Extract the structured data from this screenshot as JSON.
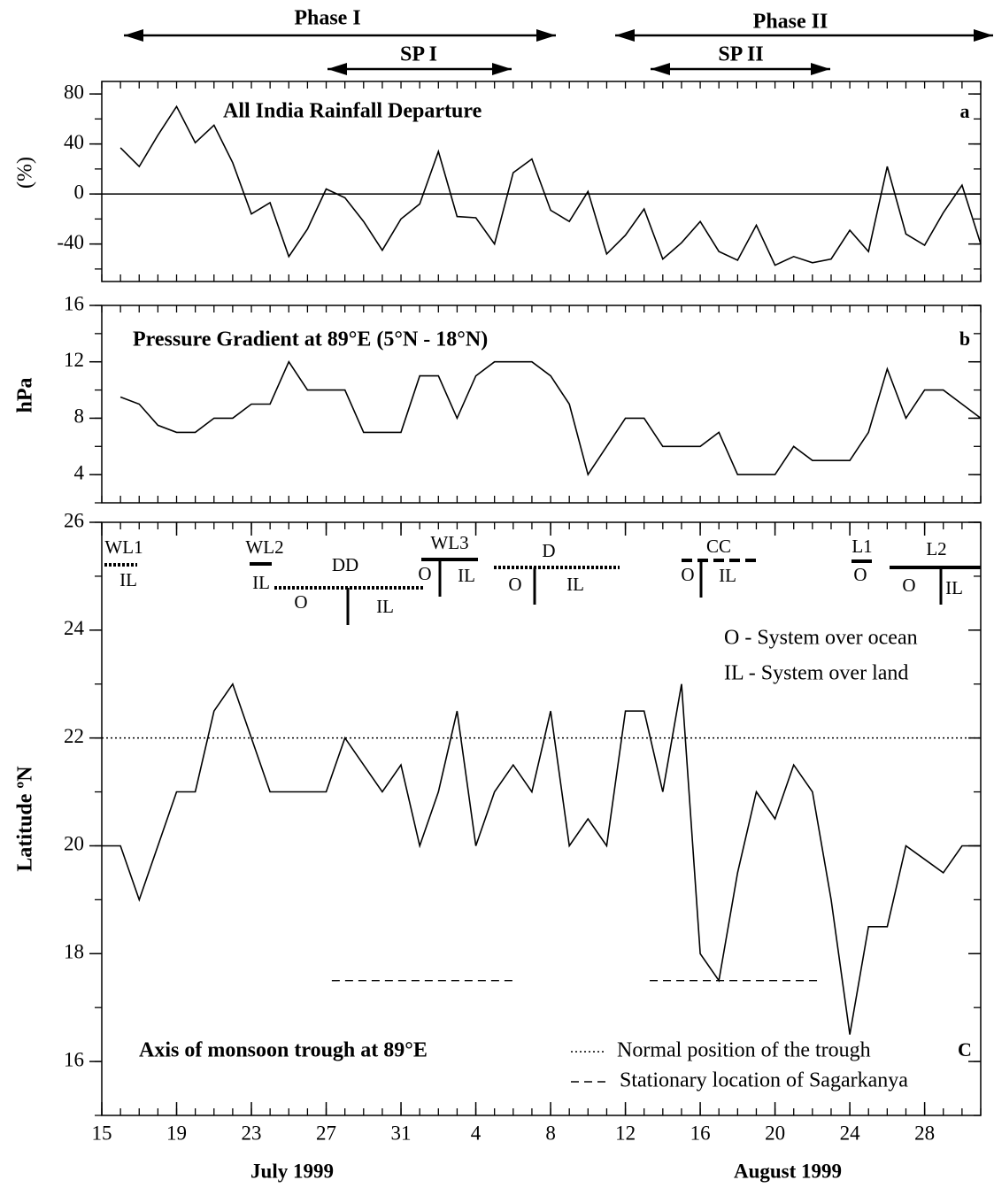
{
  "header": {
    "phases": [
      "Phase I",
      "SP I",
      "Phase II",
      "SP II"
    ]
  },
  "chart_data": [
    {
      "type": "line",
      "title": "All India Rainfall Departure",
      "panel_label": "a",
      "ylabel": "(%)",
      "color": "#000000",
      "x": [
        1,
        2,
        3,
        4,
        5,
        6,
        7,
        8,
        9,
        10,
        11,
        12,
        13,
        14,
        15,
        16,
        17,
        18,
        19,
        20,
        21,
        22,
        23,
        24,
        25,
        26,
        27,
        28,
        29,
        30,
        31,
        32,
        33,
        34,
        35,
        36,
        37,
        38,
        39,
        40,
        41,
        42,
        43,
        44,
        45,
        46,
        47
      ],
      "values": [
        37,
        22,
        47,
        70,
        41,
        55,
        25,
        -16,
        -7,
        -50,
        -28,
        4,
        -3,
        -22,
        -45,
        -20,
        -8,
        34,
        -18,
        -19,
        -40,
        17,
        28,
        -13,
        -22,
        2,
        -48,
        -33,
        -12,
        -52,
        -39,
        -22,
        -46,
        -53,
        -25,
        -57,
        -50,
        -55,
        -52,
        -29,
        -46,
        22,
        -32,
        -41,
        -15,
        7,
        -40
      ],
      "xlim": [
        0,
        47
      ],
      "ylim": [
        -70,
        90
      ],
      "yticks": [
        -40,
        0,
        40,
        80
      ],
      "zero_line": true
    },
    {
      "type": "line",
      "title": "Pressure Gradient at 89°E (5°N - 18°N)",
      "panel_label": "b",
      "ylabel": "hPa",
      "color": "#000000",
      "x": [
        1,
        2,
        3,
        4,
        5,
        6,
        7,
        8,
        9,
        10,
        11,
        12,
        13,
        14,
        15,
        16,
        17,
        18,
        19,
        20,
        21,
        22,
        23,
        24,
        25,
        26,
        27,
        28,
        29,
        30,
        31,
        32,
        33,
        34,
        35,
        36,
        37,
        38,
        39,
        40,
        41,
        42,
        43,
        44,
        45,
        46,
        47
      ],
      "values": [
        9.5,
        9,
        7.5,
        7,
        7,
        8,
        8,
        9,
        9,
        12,
        10,
        10,
        10,
        7,
        7,
        7,
        11,
        11,
        8,
        11,
        12,
        12,
        12,
        11,
        9,
        4,
        6,
        8,
        8,
        6,
        6,
        6,
        7,
        4,
        4,
        4,
        6,
        5,
        5,
        5,
        7,
        11.5,
        8,
        10,
        10,
        9,
        8
      ],
      "xlim": [
        0,
        47
      ],
      "ylim": [
        2,
        16
      ],
      "yticks": [
        4,
        8,
        12,
        16
      ]
    },
    {
      "type": "line",
      "title": "Axis of monsoon trough at 89°E",
      "panel_label": "C",
      "ylabel": "Latitude ºN",
      "color": "#000000",
      "x": [
        0,
        1,
        2,
        3,
        4,
        5,
        6,
        7,
        8,
        9,
        10,
        11,
        12,
        13,
        14,
        15,
        16,
        17,
        18,
        19,
        20,
        21,
        22,
        23,
        24,
        25,
        26,
        27,
        28,
        29,
        30,
        31,
        32,
        33,
        34,
        35,
        36,
        37,
        38,
        39,
        40,
        41,
        42,
        43,
        44,
        45,
        46,
        47
      ],
      "values": [
        20,
        20,
        19,
        20,
        21,
        21,
        22.5,
        23,
        22,
        21,
        21,
        21,
        21,
        22,
        21.5,
        21,
        21.5,
        20,
        21,
        22.5,
        20,
        21,
        21.5,
        21,
        22.5,
        20,
        20.5,
        20,
        22.5,
        22.5,
        21,
        23,
        18,
        17.5,
        19.5,
        21,
        20.5,
        21.5,
        21,
        19,
        16.5,
        18.5,
        18.5,
        20,
        19.75,
        19.5,
        20,
        20
      ],
      "xlim": [
        0,
        47
      ],
      "ylim": [
        15,
        26
      ],
      "yticks": [
        16,
        18,
        20,
        22,
        24,
        26
      ],
      "xticks": [
        {
          "value": 0,
          "label": "15"
        },
        {
          "value": 4,
          "label": "19"
        },
        {
          "value": 8,
          "label": "23"
        },
        {
          "value": 12,
          "label": "27"
        },
        {
          "value": 16,
          "label": "31"
        },
        {
          "value": 20,
          "label": "4"
        },
        {
          "value": 24,
          "label": "8"
        },
        {
          "value": 28,
          "label": "12"
        },
        {
          "value": 32,
          "label": "16"
        },
        {
          "value": 36,
          "label": "20"
        },
        {
          "value": 40,
          "label": "24"
        },
        {
          "value": 44,
          "label": "28"
        }
      ],
      "months": [
        "July 1999",
        "August 1999"
      ],
      "normal_trough": {
        "name": "Normal position of the trough",
        "value": 22
      },
      "sagarkanya": {
        "name": "Stationary location of Sagarkanya",
        "value": 17.5,
        "periods": [
          [
            12.3,
            22.2
          ],
          [
            29.3,
            38.5
          ]
        ]
      },
      "systems": [
        {
          "name": "WL1",
          "labels": [
            "IL"
          ]
        },
        {
          "name": "WL2",
          "labels": [
            "IL"
          ]
        },
        {
          "name": "DD",
          "labels": [
            "O",
            "IL"
          ]
        },
        {
          "name": "WL3",
          "labels": [
            "O",
            "IL"
          ]
        },
        {
          "name": "D",
          "labels": [
            "O",
            "IL"
          ]
        },
        {
          "name": "CC",
          "labels": [
            "O",
            "IL"
          ]
        },
        {
          "name": "L1",
          "labels": [
            "O"
          ]
        },
        {
          "name": "L2",
          "labels": [
            "O",
            "IL"
          ]
        }
      ],
      "systems_legend": [
        "O - System over ocean",
        "IL - System over land"
      ]
    }
  ]
}
